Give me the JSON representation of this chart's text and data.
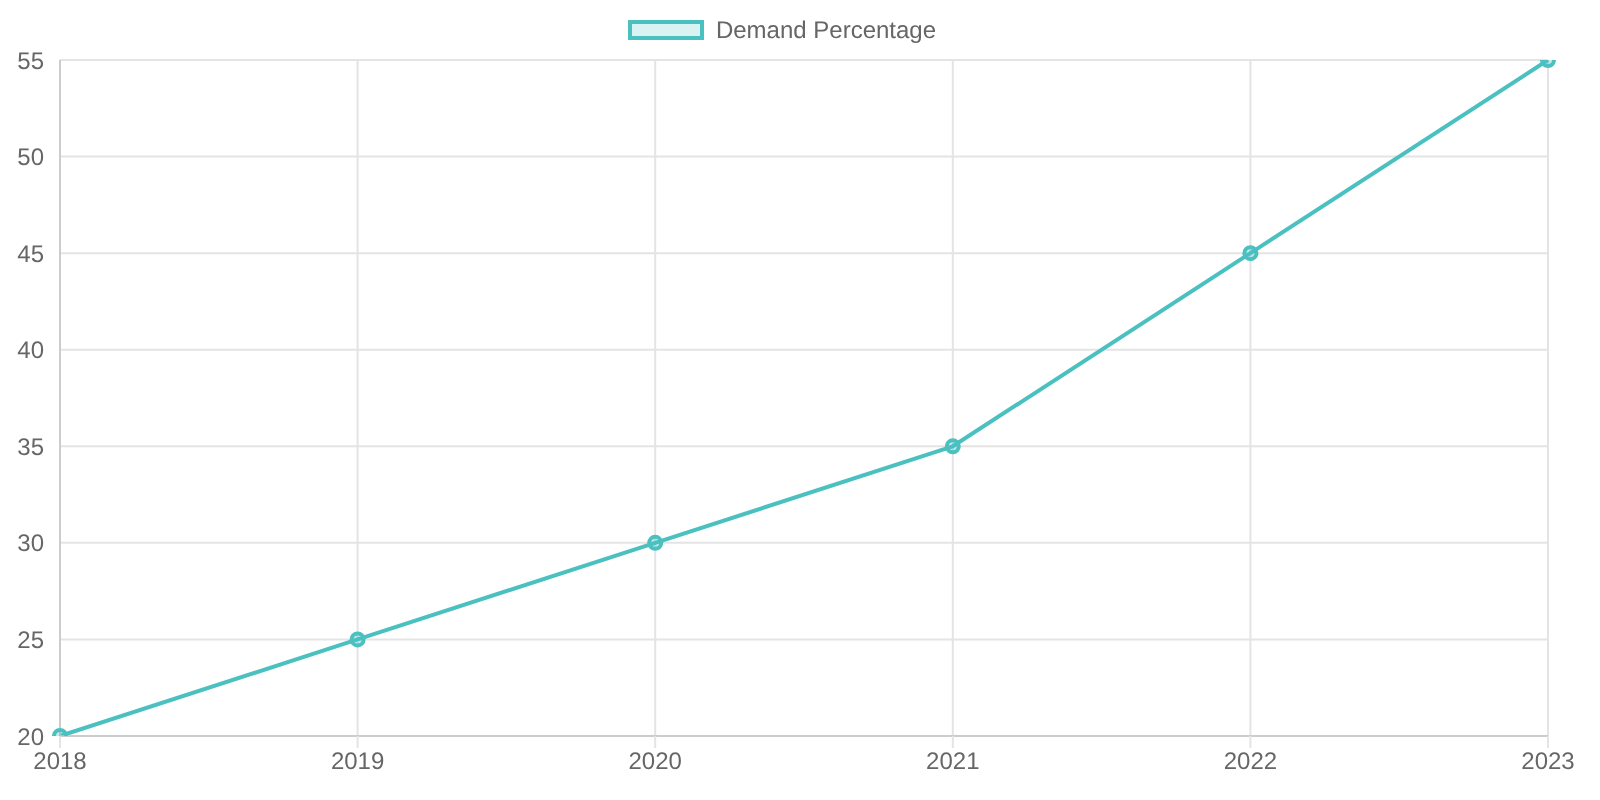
{
  "chart_data": {
    "type": "line",
    "categories": [
      "2018",
      "2019",
      "2020",
      "2021",
      "2022",
      "2023"
    ],
    "series": [
      {
        "name": "Demand Percentage",
        "color": "#4bc0c0",
        "values": [
          20,
          25,
          30,
          35,
          45,
          55
        ]
      }
    ],
    "ylim": [
      20,
      55
    ],
    "yticks": [
      20,
      25,
      30,
      35,
      40,
      45,
      50,
      55
    ],
    "grid": true,
    "legend": "top",
    "marker": "circle",
    "line_style": "solid"
  }
}
